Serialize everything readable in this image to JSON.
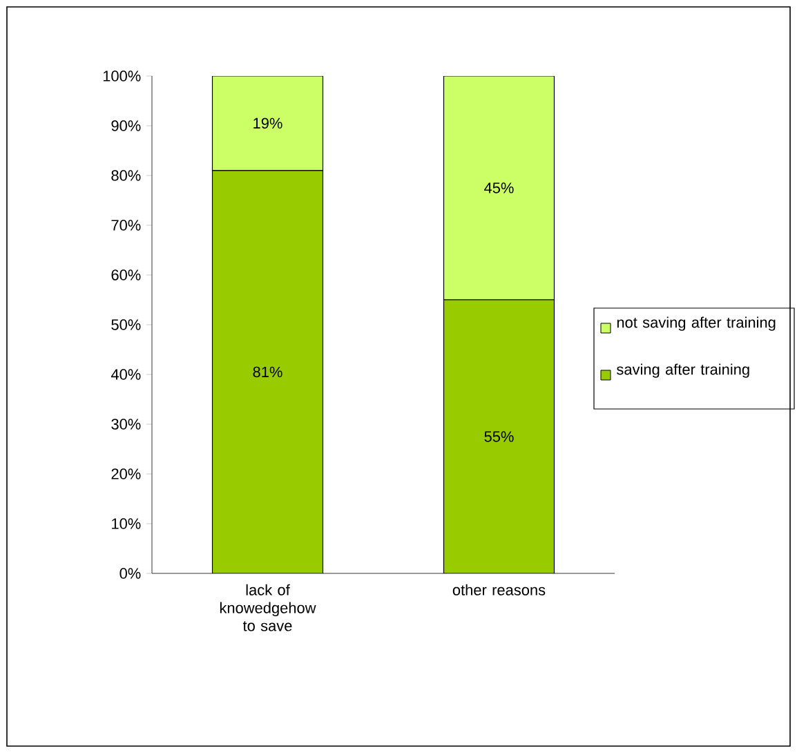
{
  "chart_data": {
    "type": "bar",
    "stacked": true,
    "categories": [
      "lack of knowedgehow to save",
      "other reasons"
    ],
    "series": [
      {
        "name": "saving after training",
        "color": "#99cc00",
        "values": [
          81,
          55
        ],
        "value_labels": [
          "81%",
          "55%"
        ]
      },
      {
        "name": "not saving after training",
        "color": "#ccff66",
        "values": [
          19,
          45
        ],
        "value_labels": [
          "19%",
          "45%"
        ]
      }
    ],
    "ylim": [
      0,
      100
    ],
    "yticks": [
      {
        "value": 0,
        "label": "0%"
      },
      {
        "value": 10,
        "label": "10%"
      },
      {
        "value": 20,
        "label": "20%"
      },
      {
        "value": 30,
        "label": "30%"
      },
      {
        "value": 40,
        "label": "40%"
      },
      {
        "value": 50,
        "label": "50%"
      },
      {
        "value": 60,
        "label": "60%"
      },
      {
        "value": 70,
        "label": "70%"
      },
      {
        "value": 80,
        "label": "80%"
      },
      {
        "value": 90,
        "label": "90%"
      },
      {
        "value": 100,
        "label": "100%"
      }
    ],
    "legend": "right",
    "grid": false
  }
}
